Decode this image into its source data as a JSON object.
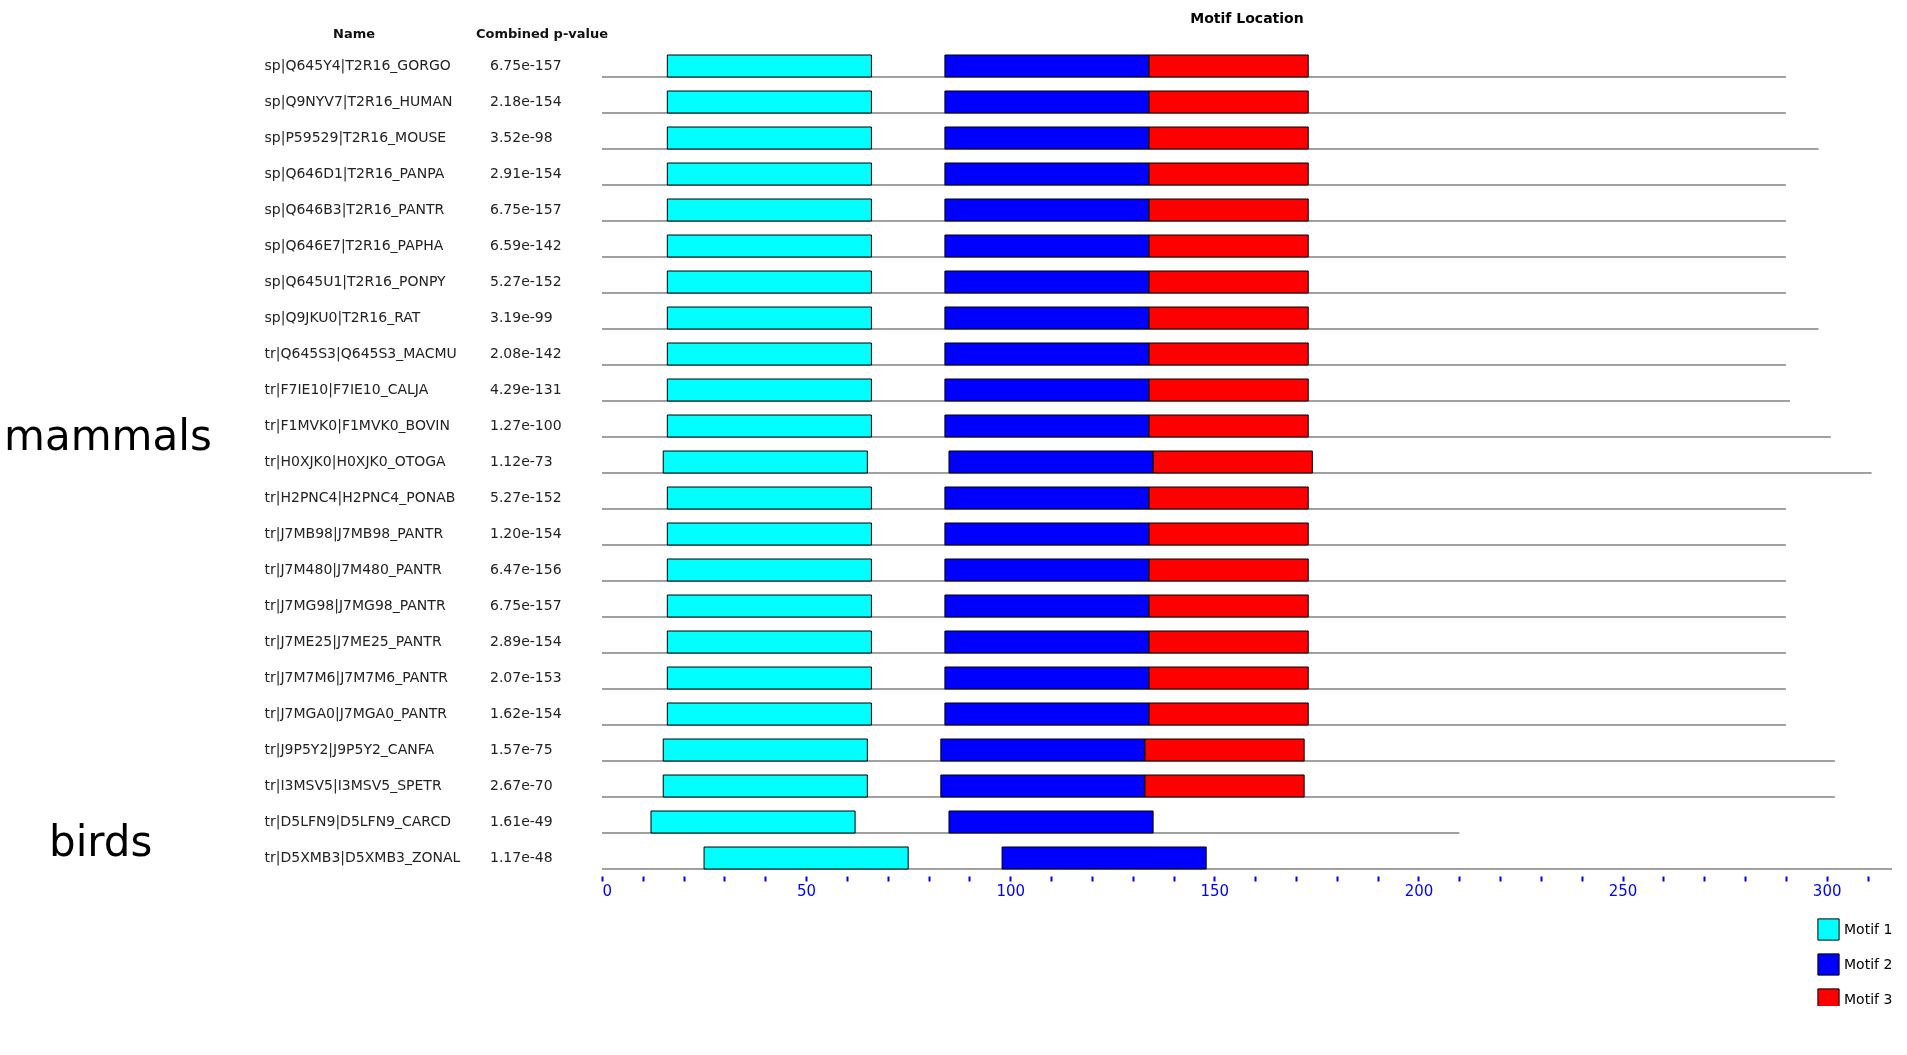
{
  "chart_data": {
    "type": "bar",
    "orientation": "horizontal",
    "title": "Motif Location",
    "ylabel": "Name",
    "y2label": "Combined p-value",
    "categories": [
      "sp|Q645Y4|T2R16_GORGO",
      "sp|Q9NYV7|T2R16_HUMAN",
      "sp|P59529|T2R16_MOUSE",
      "sp|Q646D1|T2R16_PANPA",
      "sp|Q646B3|T2R16_PANTR",
      "sp|Q646E7|T2R16_PAPHA",
      "sp|Q645U1|T2R16_PONPY",
      "sp|Q9JKU0|T2R16_RAT",
      "tr|Q645S3|Q645S3_MACMU",
      "tr|F7IE10|F7IE10_CALJA",
      "tr|F1MVK0|F1MVK0_BOVIN",
      "tr|H0XJK0|H0XJK0_OTOGA",
      "tr|H2PNC4|H2PNC4_PONAB",
      "tr|J7MB98|J7MB98_PANTR",
      "tr|J7M480|J7M480_PANTR",
      "tr|J7MG98|J7MG98_PANTR",
      "tr|J7ME25|J7ME25_PANTR",
      "tr|J7M7M6|J7M7M6_PANTR",
      "tr|J7MGA0|J7MGA0_PANTR",
      "tr|J9P5Y2|J9P5Y2_CANFA",
      "tr|I3MSV5|I3MSV5_SPETR",
      "tr|D5LFN9|D5LFN9_CARCD",
      "tr|D5XMB3|D5XMB3_ZONAL"
    ],
    "y2_categories": [
      "6.75e-157",
      "2.18e-154",
      "3.52e-98",
      "2.91e-154",
      "6.75e-157",
      "6.59e-142",
      "5.27e-152",
      "3.19e-99",
      "2.08e-142",
      "4.29e-131",
      "1.27e-100",
      "1.12e-73",
      "5.27e-152",
      "1.20e-154",
      "6.47e-156",
      "6.75e-157",
      "2.89e-154",
      "2.07e-153",
      "1.62e-154",
      "1.57e-75",
      "2.67e-70",
      "1.61e-49",
      "1.17e-48"
    ],
    "series": [
      {
        "color": "#808080",
        "values": [
          290,
          290,
          298,
          290,
          290,
          290,
          290,
          298,
          290,
          291,
          301,
          311,
          290,
          290,
          290,
          290,
          290,
          290,
          290,
          302,
          302,
          210,
          316
        ]
      },
      {
        "name": "Motif 1",
        "color": "#00ffff",
        "base": [
          16,
          16,
          16,
          16,
          16,
          16,
          16,
          16,
          16,
          16,
          16,
          15,
          16,
          16,
          16,
          16,
          16,
          16,
          16,
          15,
          15,
          12,
          25
        ],
        "values": [
          50,
          50,
          50,
          50,
          50,
          50,
          50,
          50,
          50,
          50,
          50,
          50,
          50,
          50,
          50,
          50,
          50,
          50,
          50,
          50,
          50,
          50,
          50
        ]
      },
      {
        "name": "Motif 2",
        "color": "#0000ff",
        "base": [
          84,
          84,
          84,
          84,
          84,
          84,
          84,
          84,
          84,
          84,
          84,
          85,
          84,
          84,
          84,
          84,
          84,
          84,
          84,
          83,
          83,
          85,
          98
        ],
        "values": [
          50,
          50,
          50,
          50,
          50,
          50,
          50,
          50,
          50,
          50,
          50,
          50,
          50,
          50,
          50,
          50,
          50,
          50,
          50,
          50,
          50,
          50,
          50
        ]
      },
      {
        "name": "Motif 3",
        "color": "#ff0000",
        "base": [
          134,
          134,
          134,
          134,
          134,
          134,
          134,
          134,
          134,
          134,
          134,
          135,
          134,
          134,
          134,
          134,
          134,
          134,
          134,
          133,
          133,
          null,
          null
        ],
        "values": [
          39,
          39,
          39,
          39,
          39,
          39,
          39,
          39,
          39,
          39,
          39,
          39,
          39,
          39,
          39,
          39,
          39,
          39,
          39,
          39,
          39,
          null,
          null
        ]
      }
    ],
    "xlim": [
      0,
      316
    ],
    "xticks": [
      0,
      {
        "value": 10,
        "label": null
      },
      {
        "value": 20,
        "label": null
      },
      {
        "value": 30,
        "label": null
      },
      {
        "value": 40,
        "label": null
      },
      50,
      {
        "value": 60,
        "label": null
      },
      {
        "value": 70,
        "label": null
      },
      {
        "value": 80,
        "label": null
      },
      {
        "value": 90,
        "label": null
      },
      100,
      {
        "value": 110,
        "label": null
      },
      {
        "value": 120,
        "label": null
      },
      {
        "value": 130,
        "label": null
      },
      {
        "value": 140,
        "label": null
      },
      150,
      {
        "value": 160,
        "label": null
      },
      {
        "value": 170,
        "label": null
      },
      {
        "value": 180,
        "label": null
      },
      {
        "value": 190,
        "label": null
      },
      200,
      {
        "value": 210,
        "label": null
      },
      {
        "value": 220,
        "label": null
      },
      {
        "value": 230,
        "label": null
      },
      {
        "value": 240,
        "label": null
      },
      250,
      {
        "value": 260,
        "label": null
      },
      {
        "value": 270,
        "label": null
      },
      {
        "value": 280,
        "label": null
      },
      {
        "value": 290,
        "label": null
      },
      300,
      {
        "value": 310,
        "label": null
      }
    ],
    "annotations": [
      "mammals",
      "birds"
    ],
    "legend": "bottom right",
    "grid": false
  }
}
